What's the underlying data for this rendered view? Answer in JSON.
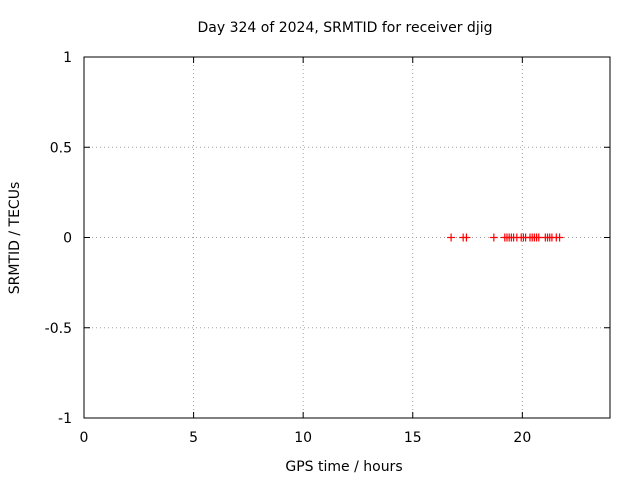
{
  "colors": {
    "point": "#ff0000",
    "grid": "#a0a0a0",
    "axis": "#000000"
  },
  "chart_data": {
    "type": "scatter",
    "title": "Day 324 of 2024, SRMTID for receiver djig",
    "xlabel": "GPS time / hours",
    "ylabel": "SRMTID / TECUs",
    "xlim": [
      0,
      24
    ],
    "ylim": [
      -1,
      1
    ],
    "xticks": [
      0,
      5,
      10,
      15,
      20
    ],
    "xtick_labels": [
      "0",
      "5",
      "10",
      "15",
      "20"
    ],
    "yticks": [
      -1,
      -0.5,
      0,
      0.5,
      1
    ],
    "ytick_labels": [
      "-1",
      "-0.5",
      "0",
      "0.5",
      "1"
    ],
    "grid": true,
    "marker": "+",
    "series": [
      {
        "name": "SRMTID",
        "x": [
          16.75,
          17.3,
          17.45,
          18.7,
          19.2,
          19.3,
          19.4,
          19.5,
          19.6,
          19.75,
          19.95,
          20.05,
          20.15,
          20.35,
          20.45,
          20.55,
          20.65,
          20.75,
          21.05,
          21.15,
          21.25,
          21.35,
          21.55,
          21.7
        ],
        "y": [
          0,
          0,
          0,
          0,
          0,
          0,
          0,
          0,
          0,
          0,
          0,
          0,
          0,
          0,
          0,
          0,
          0,
          0,
          0,
          0,
          0,
          0,
          0,
          0
        ]
      }
    ]
  }
}
